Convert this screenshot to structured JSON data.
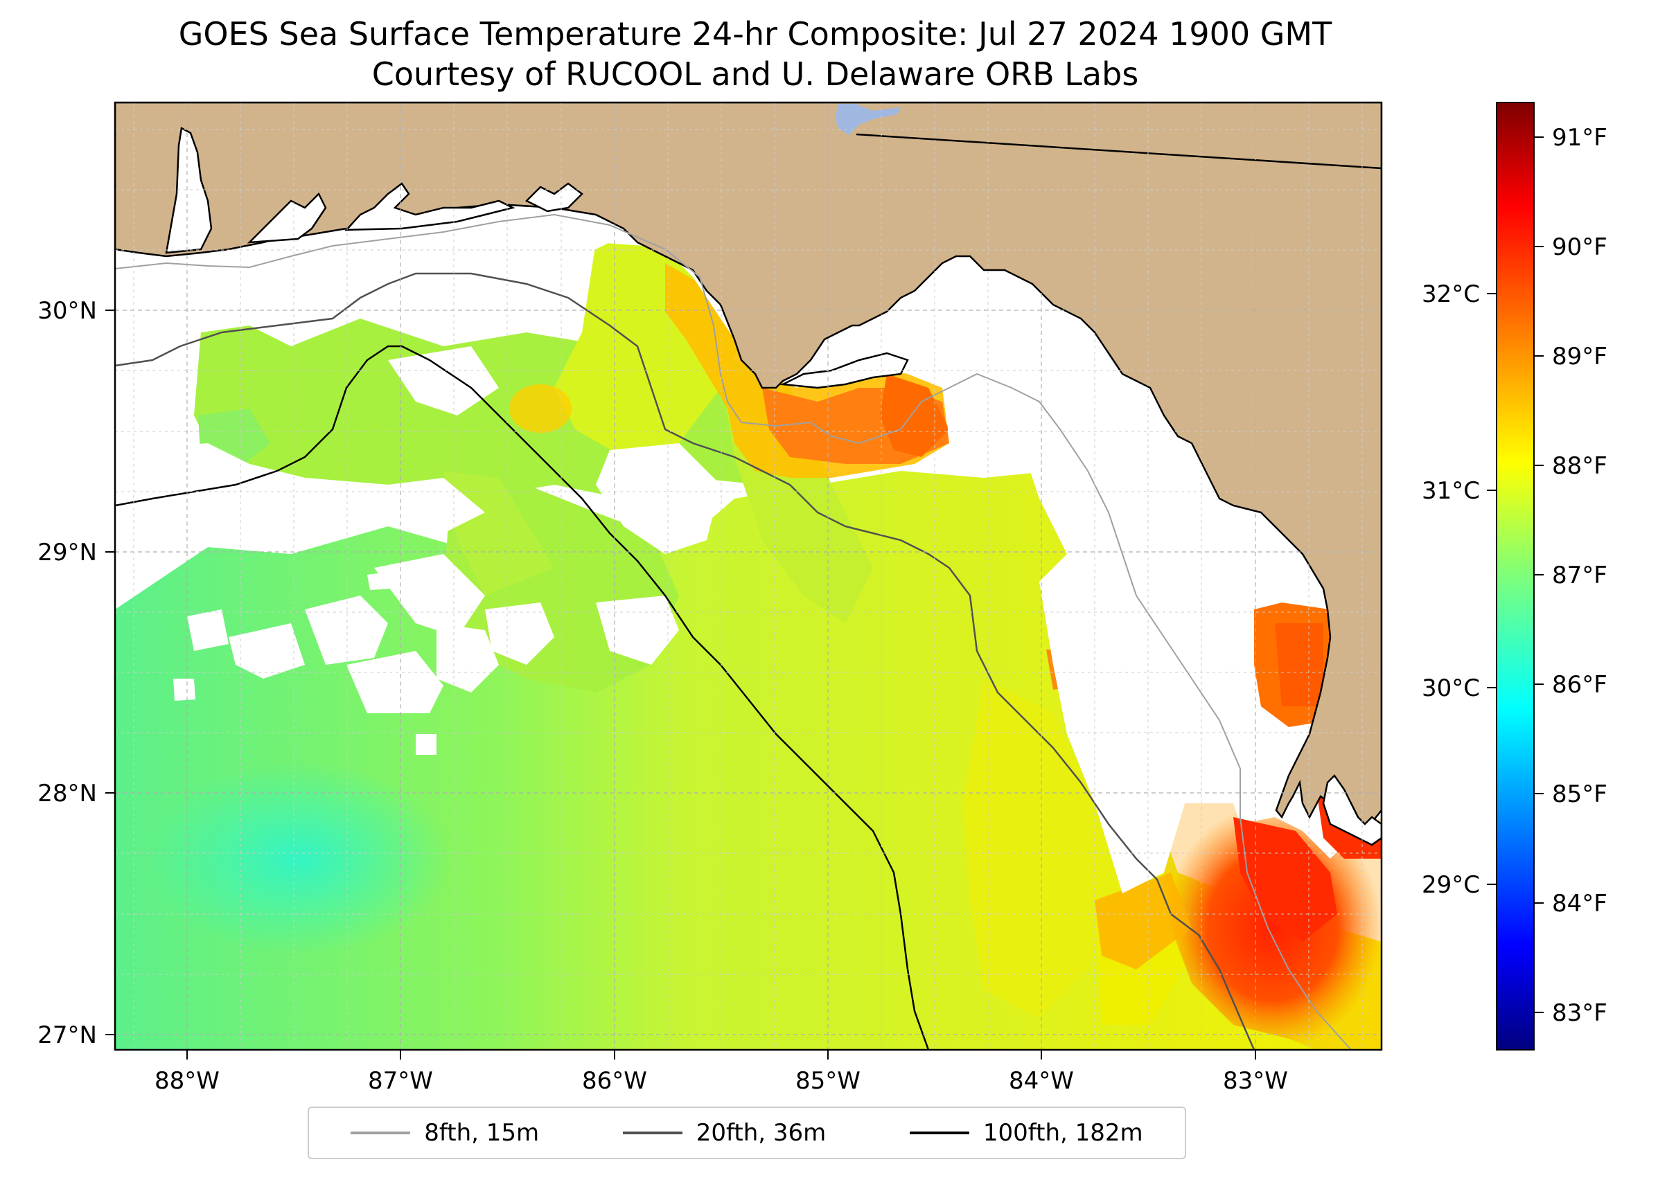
{
  "title": {
    "line1": "GOES Sea Surface Temperature 24-hr Composite: Jul 27 2024 1900 GMT",
    "line2": "Courtesy of RUCOOL and U. Delaware ORB Labs"
  },
  "map": {
    "lon_range": [
      -88.3,
      -82.4
    ],
    "lat_range": [
      26.93,
      30.85
    ],
    "lon_ticks": [
      "88°W",
      "87°W",
      "86°W",
      "85°W",
      "84°W",
      "83°W"
    ],
    "lat_ticks": [
      "27°N",
      "28°N",
      "29°N",
      "30°N"
    ],
    "gridlines": true,
    "colors": {
      "land": "#d2b48c",
      "no_data": "#ffffff",
      "lake": "#a0b8e0",
      "iso_8fth": "#a0a0a0",
      "iso_20fth": "#505050",
      "iso_100fth": "#000000"
    }
  },
  "colorbar": {
    "colormap": "jet",
    "fahrenheit_ticks": [
      "83°F",
      "84°F",
      "85°F",
      "86°F",
      "87°F",
      "88°F",
      "89°F",
      "90°F",
      "91°F"
    ],
    "celsius_ticks": [
      "29°C",
      "30°C",
      "31°C",
      "32°C"
    ],
    "range_F": [
      82.7,
      91.4
    ]
  },
  "legend": [
    {
      "label": "8fth, 15m",
      "color": "#a0a0a0"
    },
    {
      "label": "20fth, 36m",
      "color": "#505050"
    },
    {
      "label": "100fth, 182m",
      "color": "#000000"
    }
  ]
}
